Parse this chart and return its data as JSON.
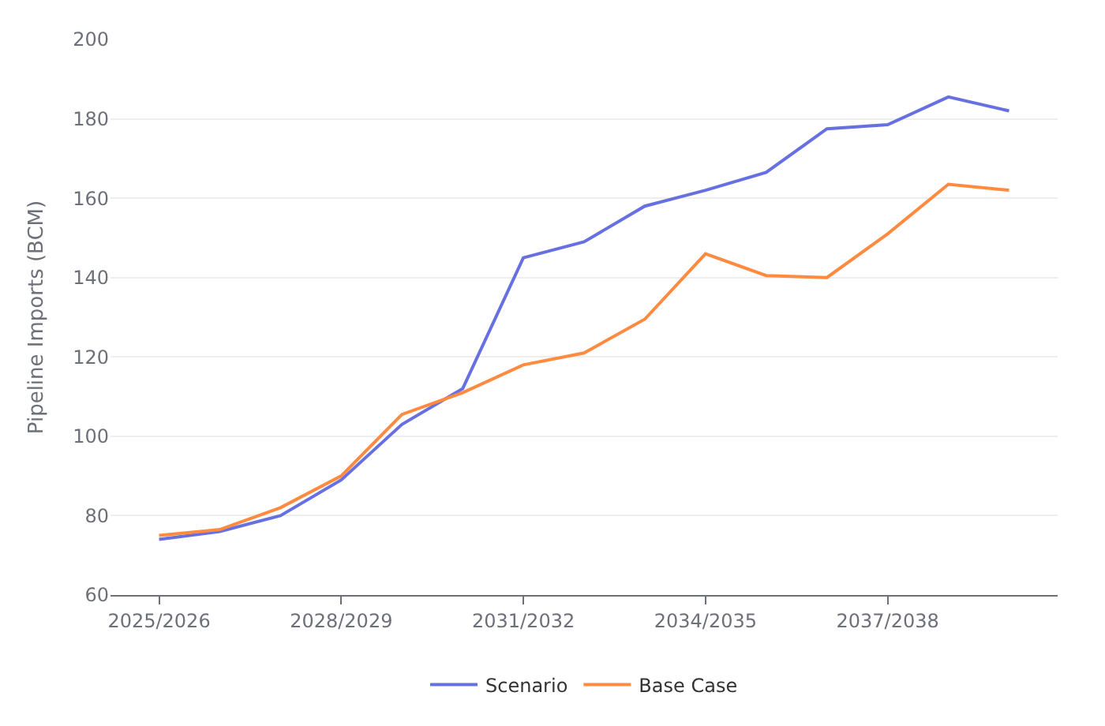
{
  "chart_data": {
    "type": "line",
    "ylabel": "Pipeline Imports (BCM)",
    "categories": [
      "2025/2026",
      null,
      null,
      "2028/2029",
      null,
      null,
      "2031/2032",
      null,
      null,
      "2034/2035",
      null,
      null,
      "2037/2038",
      null,
      null
    ],
    "series": [
      {
        "name": "Scenario",
        "color": "#6770e0",
        "values": [
          74,
          76,
          80,
          89,
          103,
          112,
          145,
          149,
          158,
          162,
          166.5,
          177.5,
          178.5,
          185.5,
          182
        ]
      },
      {
        "name": "Base Case",
        "color": "#ff8a40",
        "values": [
          75,
          76.5,
          82,
          90,
          105.5,
          111,
          118,
          121,
          129.5,
          146,
          140.5,
          140,
          151,
          163.5,
          162
        ]
      }
    ],
    "ylim": [
      60,
      200
    ],
    "yticks": [
      60,
      80,
      100,
      120,
      140,
      160,
      180,
      200
    ],
    "grid": "y",
    "legend": "bottom",
    "marker": "none",
    "line_style": "solid"
  }
}
